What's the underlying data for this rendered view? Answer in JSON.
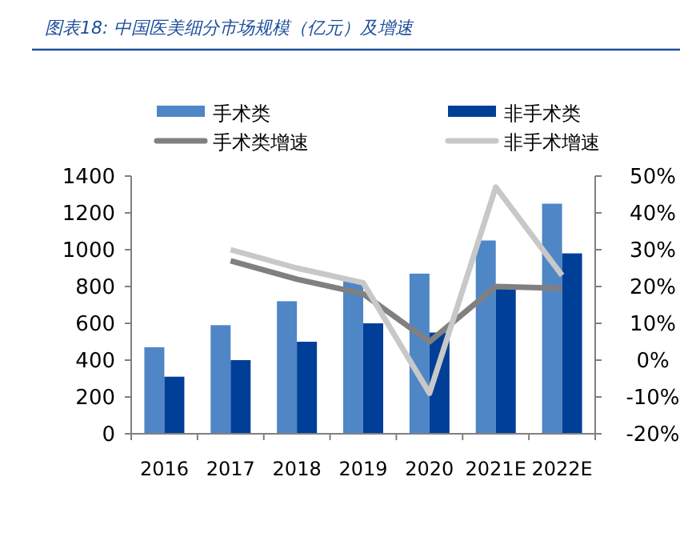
{
  "chart_data": {
    "type": "bar",
    "title": "图表18:  中国医美细分市场规模（亿元）及增速",
    "categories": [
      "2016",
      "2017",
      "2018",
      "2019",
      "2020",
      "2021E",
      "2022E"
    ],
    "series": [
      {
        "name": "手术类",
        "color": "#4f86c6",
        "values": [
          470,
          590,
          720,
          830,
          870,
          1050,
          1250
        ]
      },
      {
        "name": "非手术类",
        "color": "#003f98",
        "values": [
          310,
          400,
          500,
          600,
          550,
          800,
          980
        ]
      },
      {
        "name": "手术类增速",
        "type": "line",
        "axis": "y2",
        "color": "#808080",
        "values": [
          null,
          27,
          22,
          18,
          5,
          20,
          19.5
        ]
      },
      {
        "name": "非手术增速",
        "type": "line",
        "axis": "y2",
        "color": "#c8c8c8",
        "values": [
          null,
          30,
          25,
          21,
          -9,
          47,
          23
        ]
      }
    ],
    "ylim": [
      0,
      1400
    ],
    "yticks": [
      0,
      200,
      400,
      600,
      800,
      1000,
      1200,
      1400
    ],
    "y2lim": [
      -20,
      50
    ],
    "y2ticks": [
      {
        "value": -20,
        "label": "-20%"
      },
      {
        "value": -10,
        "label": "-10%"
      },
      {
        "value": 0,
        "label": "0%"
      },
      {
        "value": 10,
        "label": "10%"
      },
      {
        "value": 20,
        "label": "20%"
      },
      {
        "value": 30,
        "label": "30%"
      },
      {
        "value": 40,
        "label": "40%"
      },
      {
        "value": 50,
        "label": "50%"
      }
    ],
    "legend": "top"
  }
}
